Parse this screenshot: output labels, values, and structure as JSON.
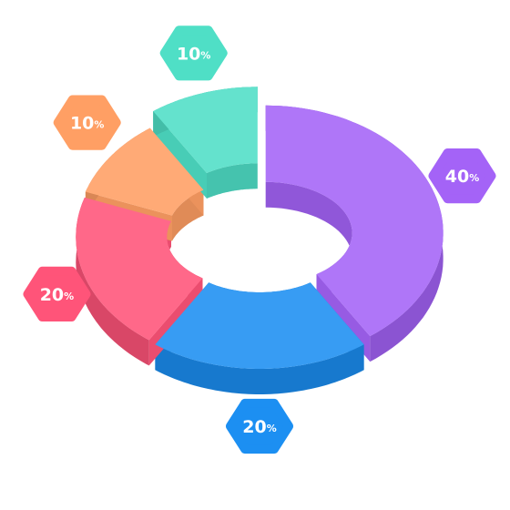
{
  "chart_data": {
    "type": "donut3d",
    "values": [
      40,
      20,
      20,
      10,
      10
    ],
    "value_unit": "%",
    "colors": [
      "#a463f7",
      "#1c8ff2",
      "#ff5479",
      "#ff9f64",
      "#4fdfc6"
    ]
  }
}
